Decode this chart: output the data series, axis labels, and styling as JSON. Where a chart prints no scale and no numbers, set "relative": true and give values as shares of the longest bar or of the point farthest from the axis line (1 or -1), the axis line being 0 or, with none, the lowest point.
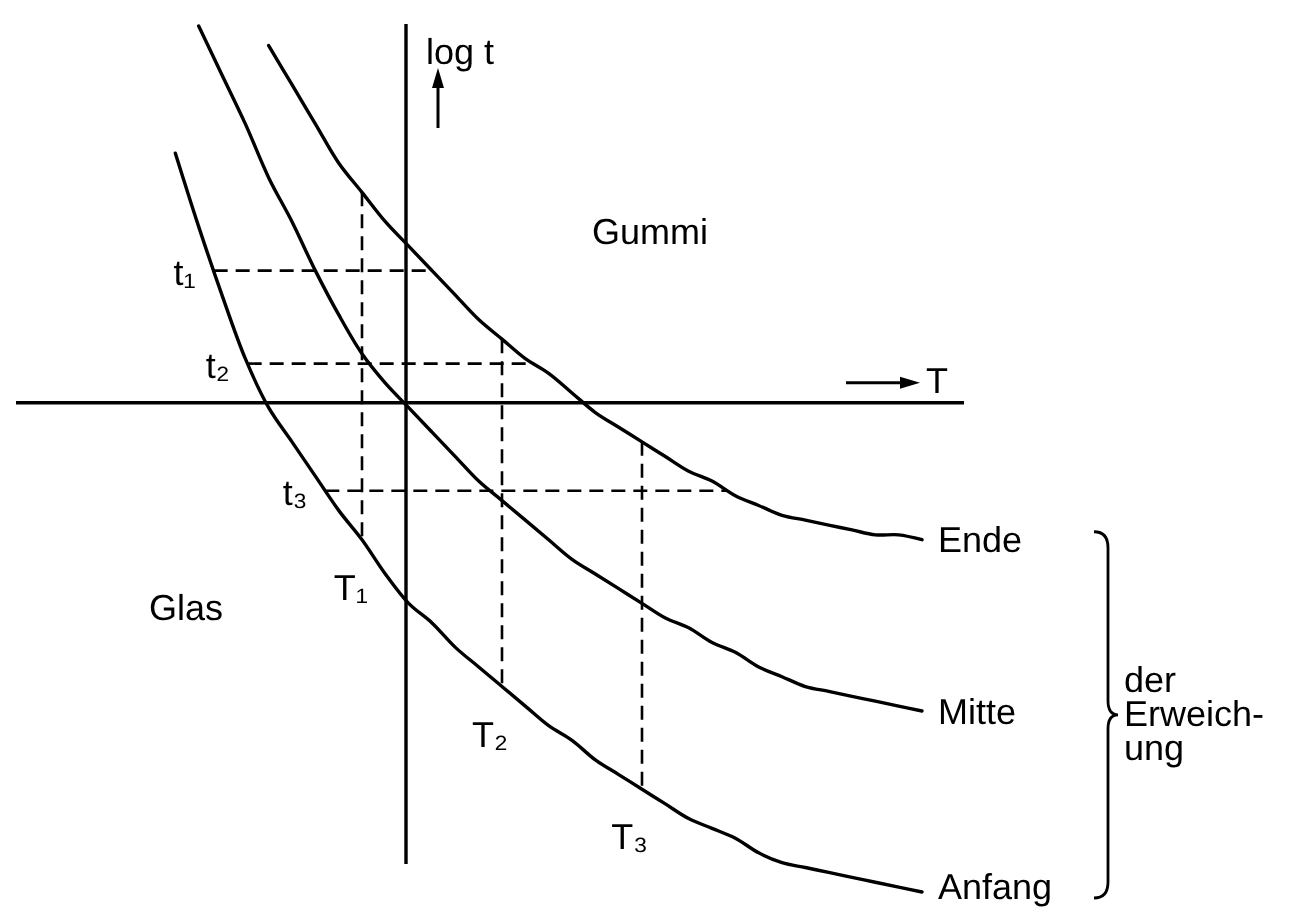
{
  "chart_data": {
    "type": "line",
    "relative": true,
    "xlabel": "T",
    "ylabel": "log t",
    "categories": [
      null,
      null,
      null,
      null,
      null,
      null,
      null,
      null,
      null,
      null,
      null,
      null,
      null,
      null,
      null,
      null,
      null,
      null,
      null,
      null,
      null,
      null,
      null,
      null,
      null,
      null,
      null,
      null,
      null,
      null,
      null,
      null,
      null
    ],
    "series": [
      {
        "name": "Ende",
        "color": "#000000",
        "values": [
          null,
          null,
          null,
          null,
          0.73,
          0.65,
          0.57,
          0.49,
          0.43,
          0.37,
          0.32,
          0.27,
          0.22,
          0.17,
          0.13,
          0.09,
          0.06,
          0.02,
          -0.02,
          -0.05,
          -0.08,
          -0.11,
          -0.14,
          -0.16,
          -0.19,
          -0.21,
          -0.23,
          -0.24,
          -0.25,
          -0.26,
          -0.27,
          -0.27,
          -0.28
        ]
      },
      {
        "name": "Mitte",
        "color": "#000000",
        "values": [
          null,
          0.77,
          0.67,
          0.57,
          0.46,
          0.37,
          0.27,
          0.18,
          0.1,
          0.04,
          -0.01,
          -0.06,
          -0.11,
          -0.16,
          -0.2,
          -0.24,
          -0.28,
          -0.32,
          -0.35,
          -0.38,
          -0.41,
          -0.44,
          -0.46,
          -0.49,
          -0.51,
          -0.54,
          -0.56,
          -0.58,
          -0.59,
          -0.6,
          -0.61,
          -0.62,
          -0.63
        ]
      },
      {
        "name": "Anfang",
        "color": "#000000",
        "values": [
          0.51,
          0.36,
          0.22,
          0.09,
          -0.01,
          -0.08,
          -0.15,
          -0.22,
          -0.28,
          -0.35,
          -0.41,
          -0.45,
          -0.5,
          -0.54,
          -0.58,
          -0.62,
          -0.66,
          -0.69,
          -0.73,
          -0.76,
          -0.79,
          -0.82,
          -0.85,
          -0.87,
          -0.89,
          -0.92,
          -0.94,
          -0.95,
          -0.96,
          -0.97,
          -0.98,
          -0.99,
          -1.0
        ]
      }
    ],
    "ref_lines": [
      {
        "axis": "y",
        "value": 0.27,
        "label": "t₁",
        "color": "#000000",
        "line_style": "dashed"
      },
      {
        "axis": "y",
        "value": 0.08,
        "label": "t₂",
        "color": "#000000",
        "line_style": "dashed"
      },
      {
        "axis": "y",
        "value": -0.18,
        "label": "t₃",
        "color": "#000000",
        "line_style": "dashed"
      }
    ],
    "annotations": [
      "Gummi",
      "Glas",
      "der\nErweich-\nung",
      "T₁",
      "T₂",
      "T₃"
    ]
  }
}
